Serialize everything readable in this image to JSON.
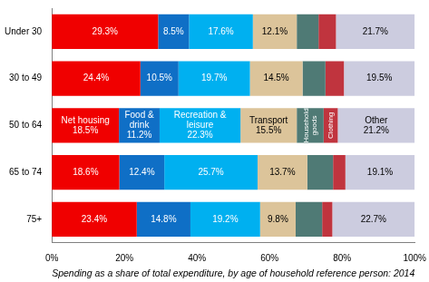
{
  "chart_data": {
    "type": "bar",
    "orientation": "horizontal",
    "stacked": true,
    "data_labels": true,
    "grid": false,
    "categories": [
      "Under 30",
      "30 to 49",
      "50 to 64",
      "65 to 74",
      "75+"
    ],
    "xlabel": "Spending as a share of total expenditure, by age of household reference person: 2014",
    "xlim": [
      0,
      100
    ],
    "xticks": [
      {
        "value": 0,
        "label": "0%"
      },
      {
        "value": 20,
        "label": "20%"
      },
      {
        "value": 40,
        "label": "40%"
      },
      {
        "value": 60,
        "label": "60%"
      },
      {
        "value": 80,
        "label": "80%"
      },
      {
        "value": 100,
        "label": "100%"
      }
    ],
    "series": [
      {
        "name": "Net housing",
        "color": "#f00000",
        "values": [
          29.3,
          24.4,
          18.5,
          18.6,
          23.4
        ],
        "value_labels": [
          "29.3%",
          "24.4%",
          "18.5%",
          "18.6%",
          "23.4%"
        ]
      },
      {
        "name": "Food & drink",
        "color": "#0f6fc6",
        "values": [
          8.5,
          10.5,
          11.2,
          12.4,
          14.8
        ],
        "value_labels": [
          "8.5%",
          "10.5%",
          "11.2%",
          "12.4%",
          "14.8%"
        ]
      },
      {
        "name": "Recreation & leisure",
        "color": "#00b0f0",
        "values": [
          17.6,
          19.7,
          22.3,
          25.7,
          19.2
        ],
        "value_labels": [
          "17.6%",
          "19.7%",
          "22.3%",
          "25.7%",
          "19.2%"
        ]
      },
      {
        "name": "Transport",
        "color": "#dcc49a",
        "values": [
          12.1,
          14.5,
          15.5,
          13.7,
          9.8
        ],
        "value_labels": [
          "12.1%",
          "14.5%",
          "15.5%",
          "13.7%",
          "9.8%"
        ]
      },
      {
        "name": "Household goods",
        "color": "#4f7a75",
        "data_labels": false,
        "values": [
          6.0,
          6.3,
          7.4,
          7.1,
          7.3
        ]
      },
      {
        "name": "Clothing",
        "color": "#c0343e",
        "data_labels": false,
        "values": [
          4.8,
          5.1,
          3.9,
          3.4,
          2.8
        ]
      },
      {
        "name": "Other",
        "color": "#ccccdf",
        "values": [
          21.7,
          19.5,
          21.2,
          19.1,
          22.7
        ],
        "value_labels": [
          "21.7%",
          "19.5%",
          "21.2%",
          "19.1%",
          "22.7%"
        ]
      }
    ]
  }
}
